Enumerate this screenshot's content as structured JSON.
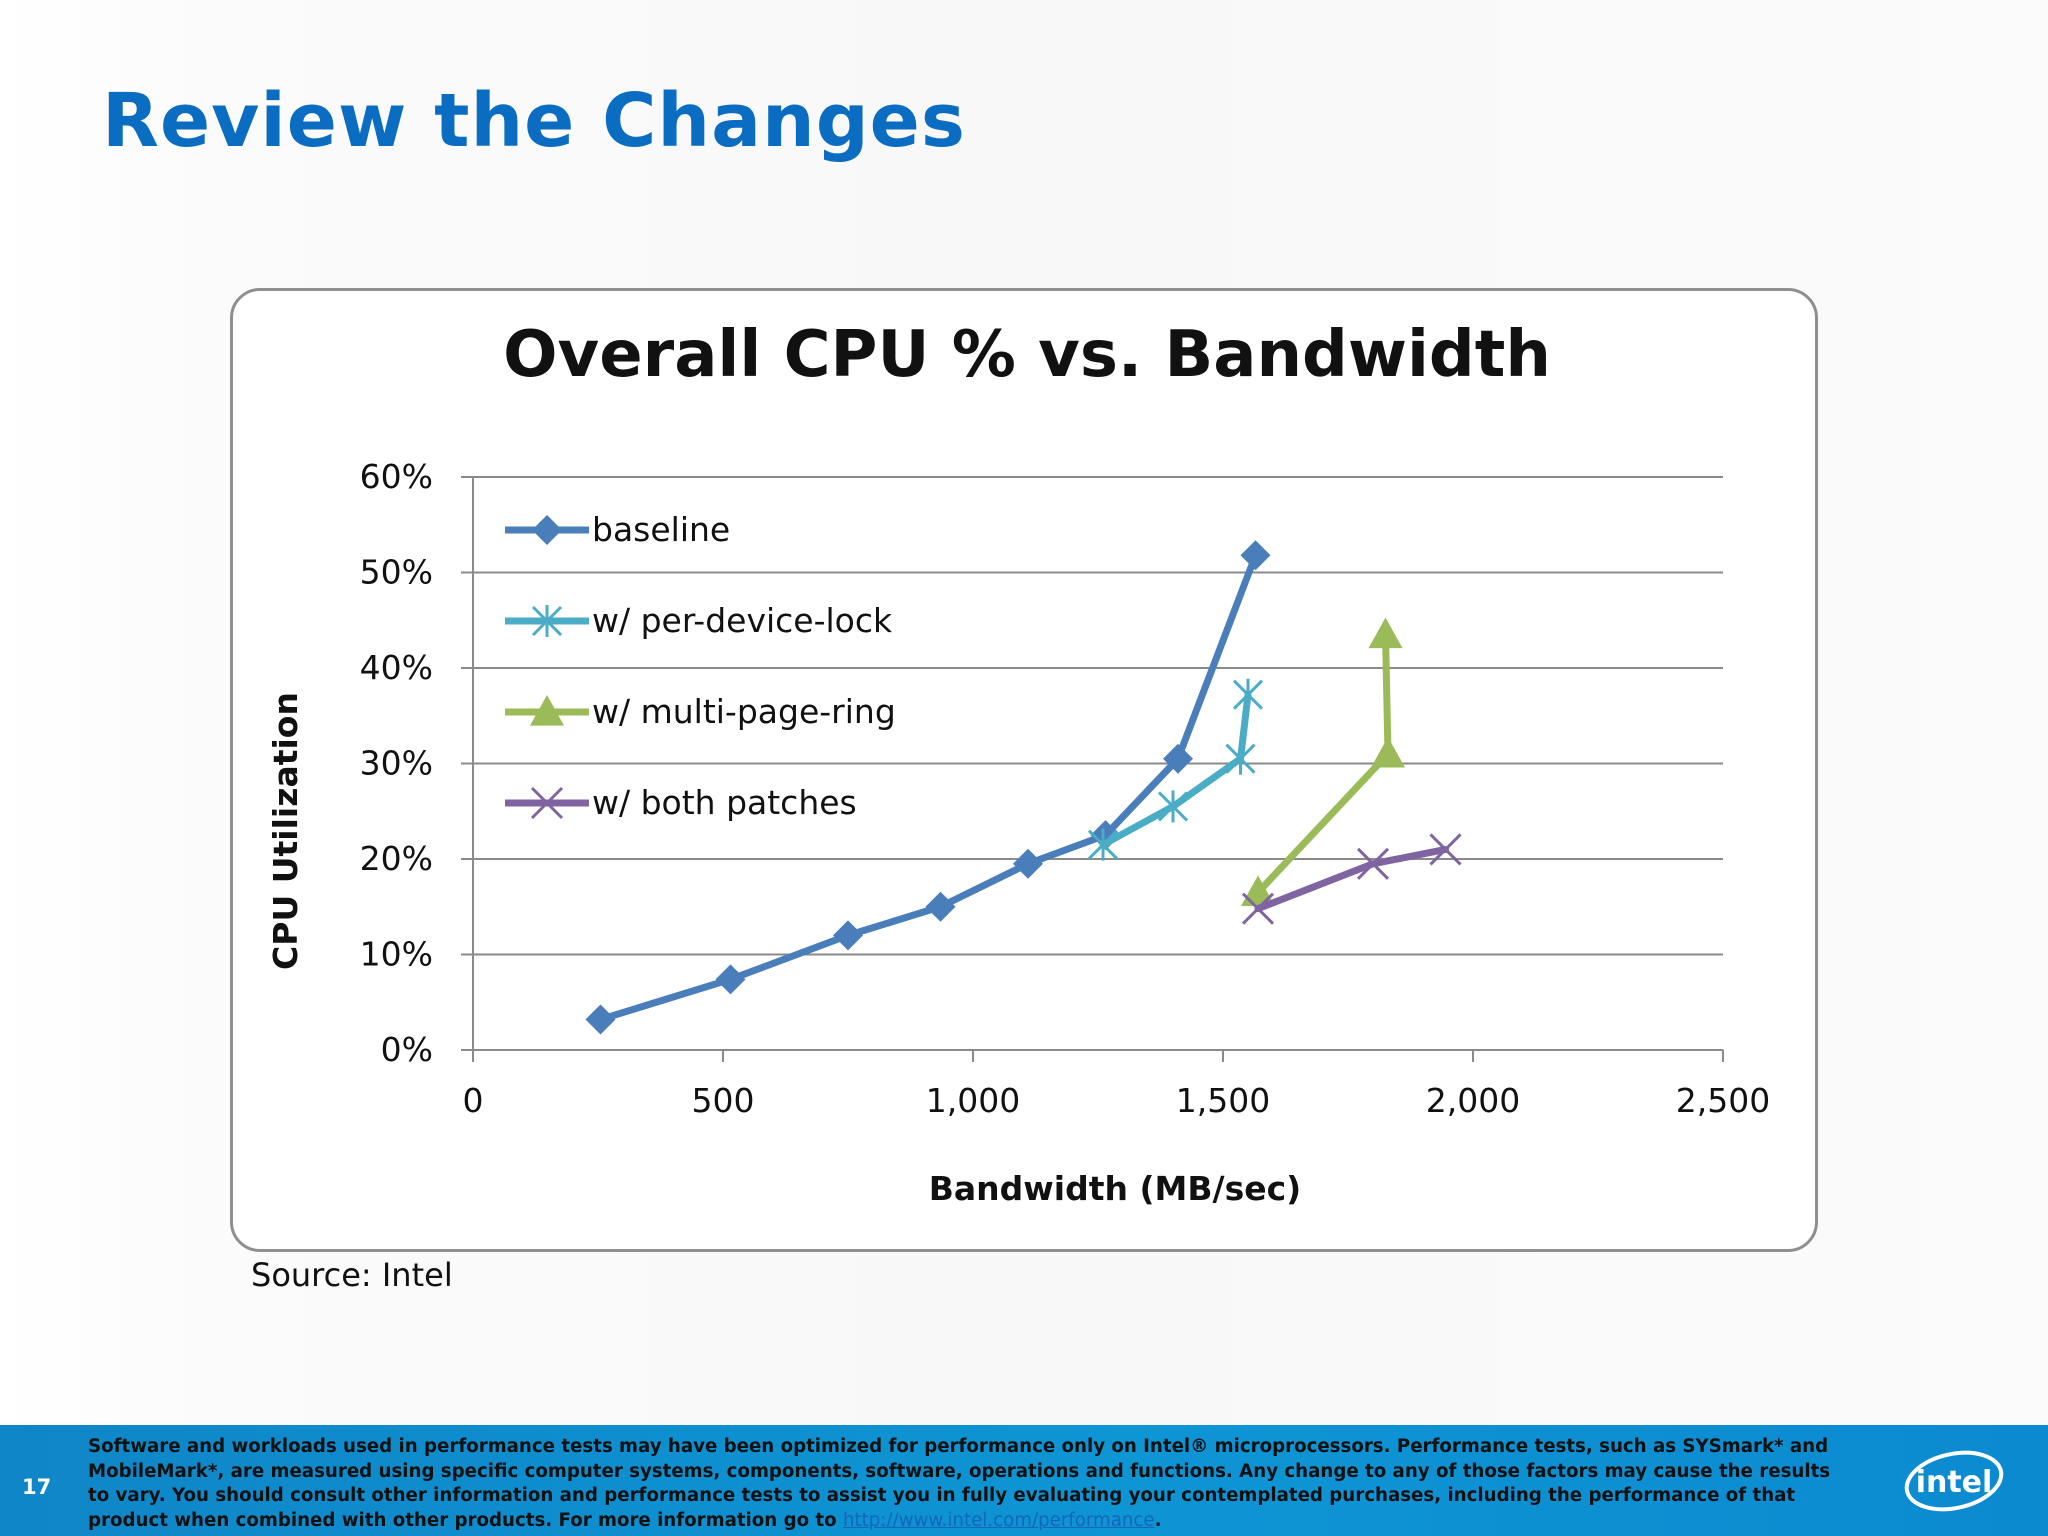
{
  "slide": {
    "title": "Review the Changes",
    "source": "Source: Intel",
    "page_number": "17"
  },
  "footer": {
    "disclaimer": "Software and workloads used in performance tests may have been optimized for performance only on Intel® microprocessors. Performance tests, such as SYSmark* and MobileMark*, are measured using specific computer systems, components, software, operations and functions. Any change to any of those factors may cause the results to vary. You should consult other information and performance tests to assist you in fully evaluating your contemplated purchases, including the performance of that product when combined with other products. For more information go to",
    "link_text": "http://www.intel.com/performance",
    "end_punct": ".",
    "logo_text": "intel",
    "logo_color": "#ffffff"
  },
  "chart_data": {
    "type": "line",
    "title": "Overall CPU % vs. Bandwidth",
    "xlabel": "Bandwidth (MB/sec)",
    "ylabel": "CPU Utilization",
    "xlim": [
      0,
      2500
    ],
    "ylim": [
      0,
      60
    ],
    "x_ticks": [
      "0",
      "500",
      "1,000",
      "1,500",
      "2,000",
      "2,500"
    ],
    "y_ticks": [
      "0%",
      "10%",
      "20%",
      "30%",
      "40%",
      "50%",
      "60%"
    ],
    "grid": "horizontal",
    "legend_position": "top-left",
    "series": [
      {
        "name": "baseline",
        "color": "#4a7ebb",
        "marker": "diamond",
        "points": [
          [
            255,
            3.2
          ],
          [
            515,
            7.4
          ],
          [
            750,
            12
          ],
          [
            935,
            15
          ],
          [
            1110,
            19.5
          ],
          [
            1265,
            22.5
          ],
          [
            1410,
            30.5
          ],
          [
            1565,
            51.8
          ]
        ]
      },
      {
        "name": "w/ per-device-lock",
        "color": "#4bacc6",
        "marker": "asterisk",
        "points": [
          [
            1260,
            21.5
          ],
          [
            1400,
            25.5
          ],
          [
            1535,
            30.5
          ],
          [
            1550,
            37.2
          ]
        ]
      },
      {
        "name": "w/ multi-page-ring",
        "color": "#9bbb59",
        "marker": "triangle",
        "points": [
          [
            1570,
            16.5
          ],
          [
            1830,
            31
          ],
          [
            1825,
            43.5
          ]
        ]
      },
      {
        "name": "w/ both patches",
        "color": "#8064a2",
        "marker": "x",
        "points": [
          [
            1570,
            14.8
          ],
          [
            1800,
            19.5
          ],
          [
            1945,
            21
          ]
        ]
      }
    ]
  }
}
